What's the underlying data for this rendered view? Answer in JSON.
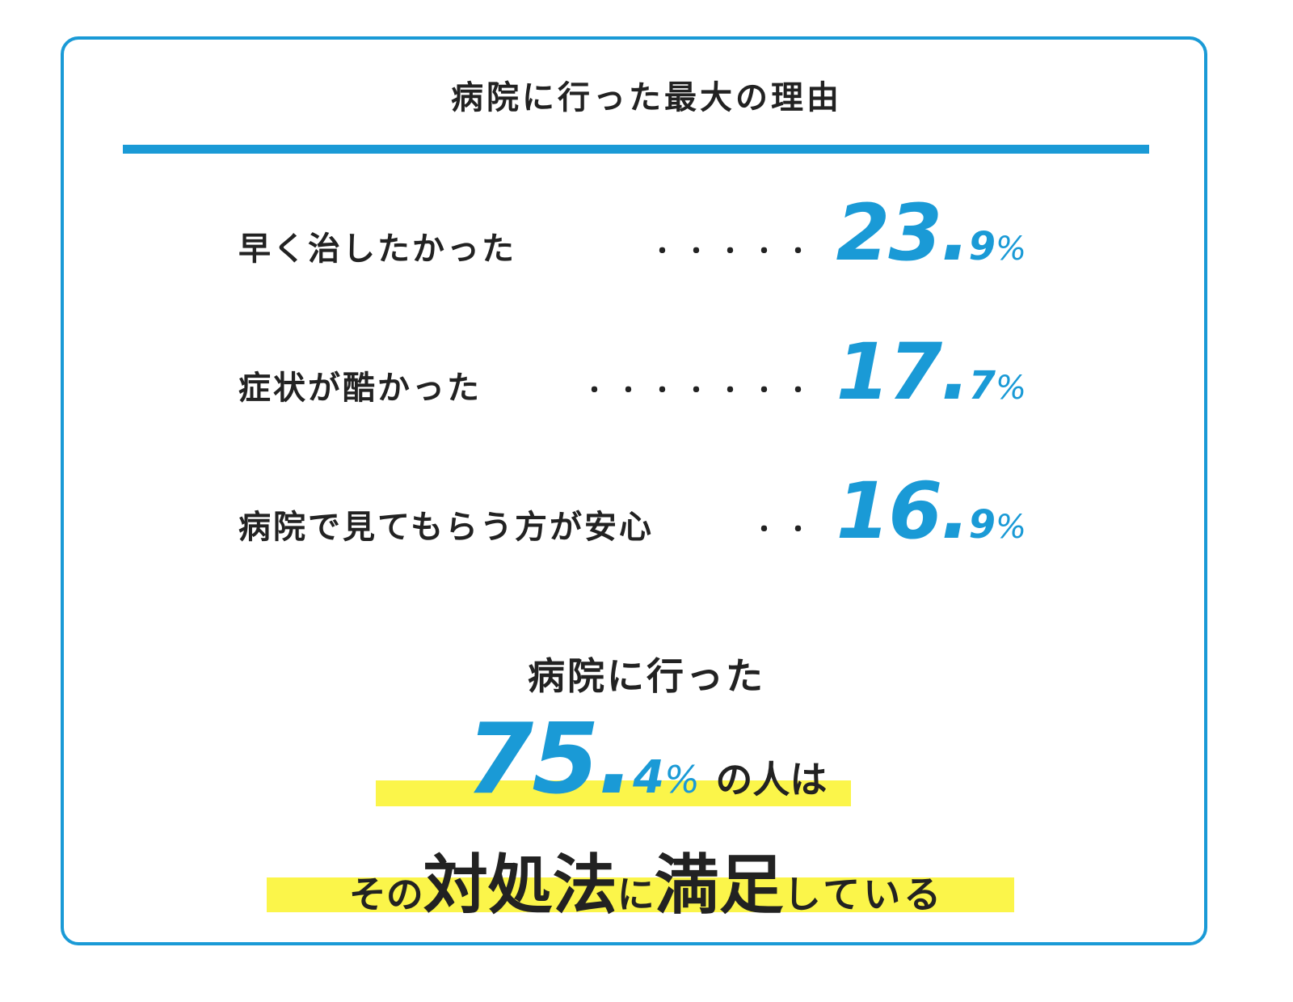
{
  "title": "病院に行った最大の理由",
  "items": [
    {
      "label": "早く治したかった",
      "leader": "・・・・・",
      "value_main": "23.",
      "value_decimal": "9",
      "unit": "%"
    },
    {
      "label": "症状が酷かった",
      "leader": "・・・・・・・",
      "value_main": "17.",
      "value_decimal": "7",
      "unit": "%"
    },
    {
      "label": "病院で見てもらう方が安心",
      "leader": "・・",
      "value_main": "16.",
      "value_decimal": "9",
      "unit": "%"
    }
  ],
  "summary": {
    "line1": "病院に行った",
    "line2": {
      "value_main": "75.",
      "value_decimal": "4",
      "unit": "%",
      "text": "の人は"
    },
    "line3": [
      "その",
      "対処法",
      "に",
      "満足",
      "している"
    ]
  }
}
